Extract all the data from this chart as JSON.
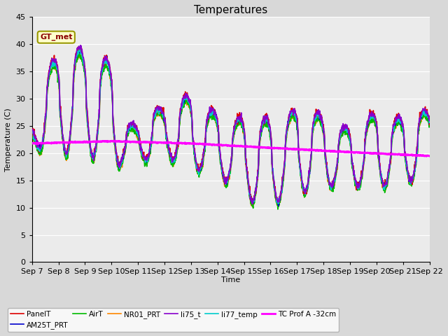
{
  "title": "Temperatures",
  "xlabel": "Time",
  "ylabel": "Temperature (C)",
  "ylim": [
    0,
    45
  ],
  "x_tick_labels": [
    "Sep 7",
    "Sep 8",
    "Sep 9",
    "Sep 10",
    "Sep 11",
    "Sep 12",
    "Sep 13",
    "Sep 14",
    "Sep 15",
    "Sep 16",
    "Sep 17",
    "Sep 18",
    "Sep 19",
    "Sep 20",
    "Sep 21",
    "Sep 22"
  ],
  "annotation_text": "GT_met",
  "series": {
    "PanelT": {
      "color": "#dd0000",
      "lw": 1.2
    },
    "AM25T_PRT": {
      "color": "#0000cc",
      "lw": 1.2
    },
    "AirT": {
      "color": "#00bb00",
      "lw": 1.2
    },
    "NR01_PRT": {
      "color": "#ff8800",
      "lw": 1.2
    },
    "li75_t": {
      "color": "#8800cc",
      "lw": 1.2
    },
    "li77_temp": {
      "color": "#00cccc",
      "lw": 1.2
    },
    "TC Prof A -32cm": {
      "color": "#ff00ff",
      "lw": 2.0
    }
  },
  "bg_color": "#d8d8d8",
  "plot_bg_color": "#ebebeb",
  "grid_color": "#ffffff",
  "n_points": 1500
}
